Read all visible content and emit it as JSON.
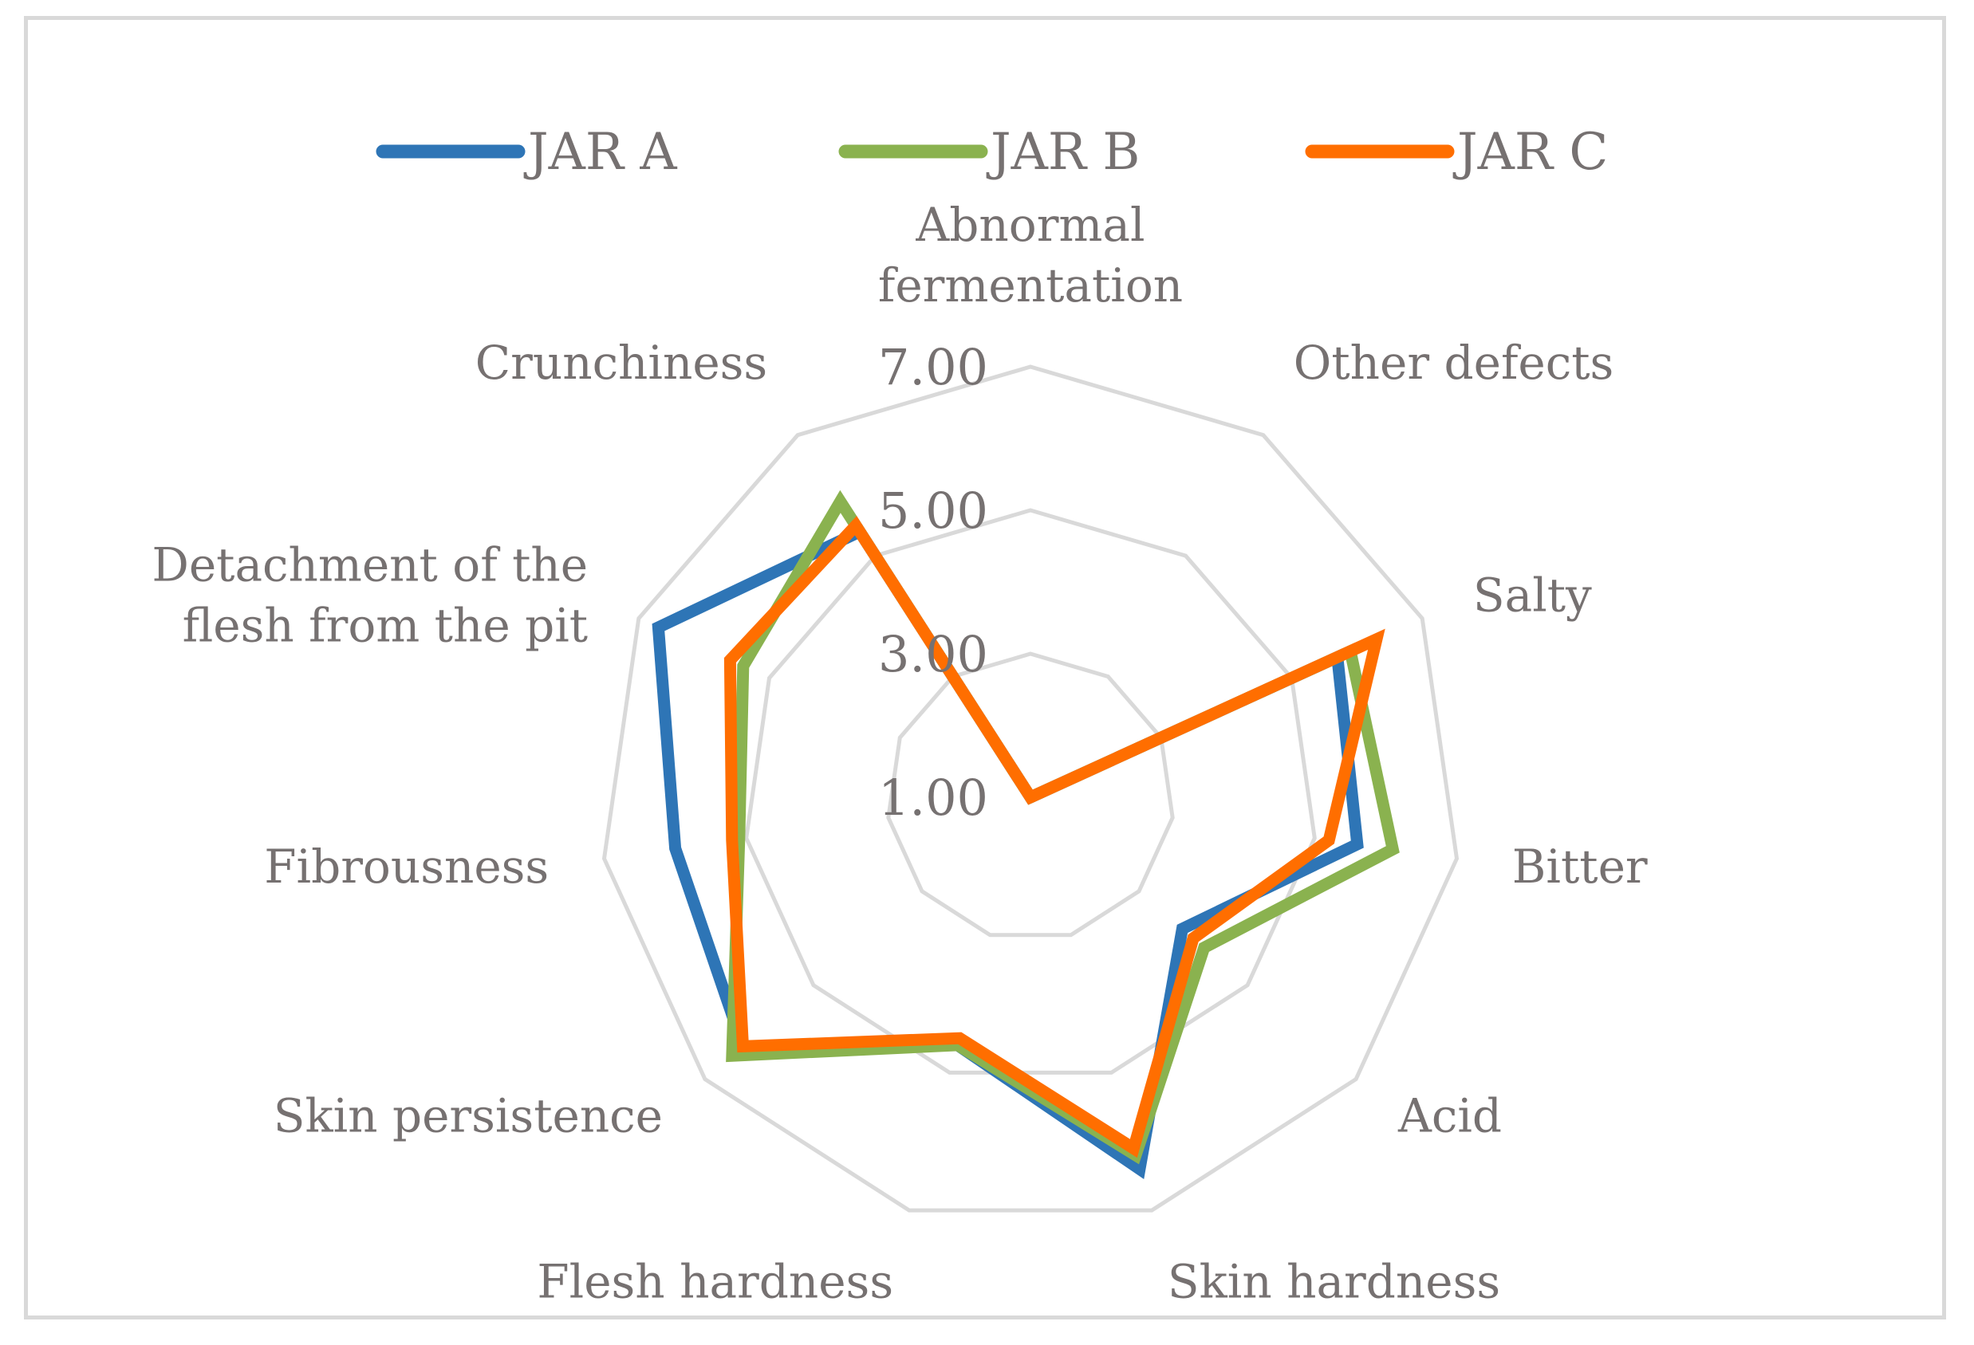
{
  "chart_data": {
    "type": "radar",
    "title": "",
    "categories": [
      "Abnormal fermentation",
      "Other defects",
      "Salty",
      "Bitter",
      "Acid",
      "Skin hardness",
      "Flesh hardness",
      "Skin persistence",
      "Fibrousness",
      "Detachment of the flesh from the pit",
      "Crunchiness"
    ],
    "category_lines": [
      [
        "Abnormal",
        "fermentation"
      ],
      [
        "Other defects"
      ],
      [
        "Salty"
      ],
      [
        "Bitter"
      ],
      [
        "Acid"
      ],
      [
        "Skin hardness"
      ],
      [
        "Flesh hardness"
      ],
      [
        "Skin persistence"
      ],
      [
        "Fibrousness"
      ],
      [
        "Detachment of the",
        "flesh from the pit"
      ],
      [
        "Crunchiness"
      ]
    ],
    "rlim": [
      1,
      7
    ],
    "ticks": [
      1,
      3,
      5,
      7
    ],
    "tick_labels": [
      "1.00",
      "3.00",
      "5.00",
      "7.00"
    ],
    "grid": true,
    "legend_position": "top",
    "series": [
      {
        "name": "JAR A",
        "color": "#2e75b6",
        "values": [
          1.0,
          1.0,
          5.7,
          5.6,
          3.8,
          6.4,
          4.6,
          6.3,
          6.0,
          6.7,
          5.4
        ]
      },
      {
        "name": "JAR B",
        "color": "#8ab24f",
        "values": [
          1.0,
          1.0,
          5.9,
          6.1,
          4.2,
          6.2,
          4.6,
          6.5,
          5.1,
          5.4,
          5.9
        ]
      },
      {
        "name": "JAR C",
        "color": "#ff6e00",
        "values": [
          1.0,
          1.0,
          6.3,
          5.2,
          4.0,
          6.1,
          4.5,
          6.3,
          5.2,
          5.6,
          5.5
        ]
      }
    ]
  }
}
